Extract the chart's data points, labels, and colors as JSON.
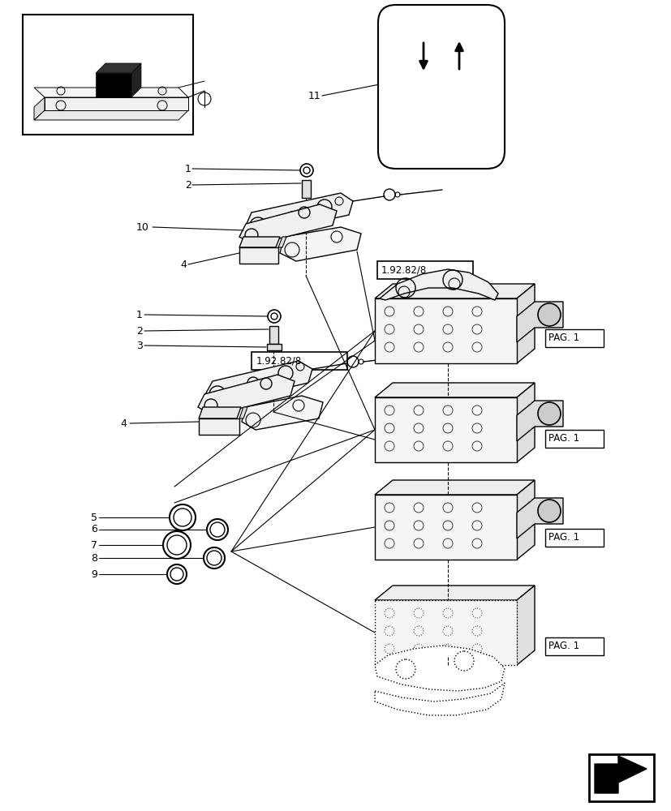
{
  "bg_color": "#ffffff",
  "fig_width": 8.28,
  "fig_height": 10.0,
  "dpi": 100,
  "ref_label": "1.92.82/8",
  "pag_label": "PAG. 1",
  "label_11": "11",
  "upper_labels": [
    "1",
    "2",
    "10",
    "4"
  ],
  "lower_labels": [
    "1",
    "2",
    "3",
    "4"
  ],
  "ring_labels": [
    "5",
    "6",
    "7",
    "8",
    "9"
  ]
}
